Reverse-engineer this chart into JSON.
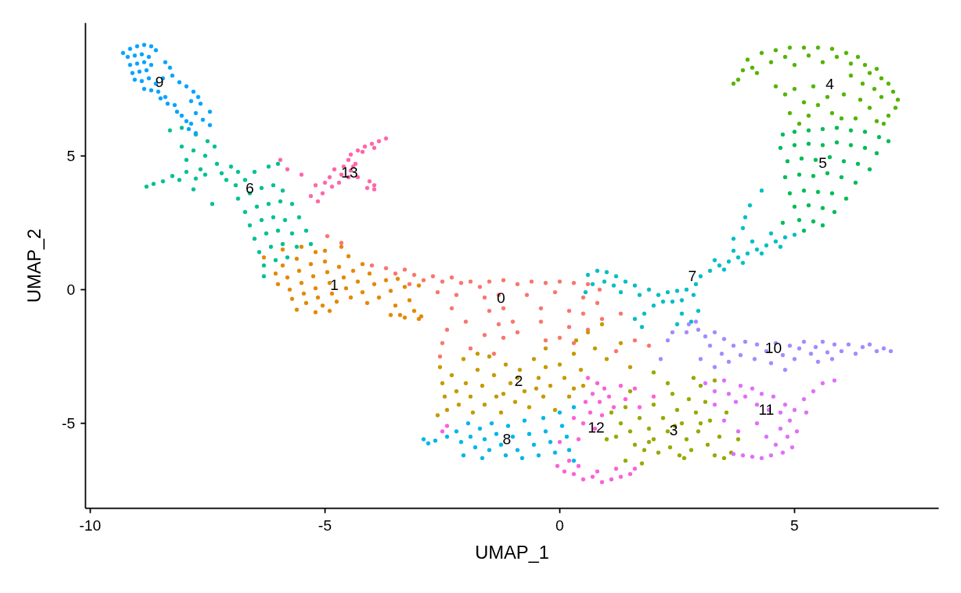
{
  "chart_data": {
    "type": "scatter",
    "xlabel": "UMAP_1",
    "ylabel": "UMAP_2",
    "xlim": [
      -10.1,
      8.07
    ],
    "ylim": [
      -8.18,
      9.97
    ],
    "xticks": [
      -10,
      -5,
      0,
      5
    ],
    "yticks": [
      -5,
      0,
      5
    ],
    "grid": false,
    "marker": "circle",
    "series": [
      {
        "name": "0",
        "color": "#F8766D",
        "x": [
          -4.95,
          -4.65,
          -4.0,
          -3.7,
          -3.5,
          -3.3,
          -3.1,
          -2.9,
          -2.7,
          -2.5,
          -2.3,
          -2.1,
          -1.9,
          -1.7,
          -3.2,
          -2.6,
          -2.2,
          -1.5,
          -1.2,
          -0.9,
          -0.6,
          -0.3,
          0.0,
          0.3,
          0.6,
          0.85,
          -1.6,
          -1.3,
          -0.7,
          -0.1,
          0.5,
          0.8,
          -1.5,
          -1.2,
          -0.4,
          0.2,
          0.5,
          0.9,
          -1.3,
          -1.0,
          -0.4,
          0.2,
          0.6,
          -1.6,
          -1.2,
          -0.9,
          -0.3,
          0.0,
          0.3,
          -2.0,
          -2.3,
          -2.4,
          -2.5,
          -1.9,
          -2.55,
          -1.4,
          1.2,
          1.6,
          1.9,
          1.3
        ],
        "values": [
          2.0,
          1.75,
          0.9,
          0.8,
          0.6,
          0.75,
          0.55,
          0.35,
          0.5,
          0.3,
          0.45,
          0.25,
          0.3,
          0.1,
          0.2,
          -0.1,
          -0.2,
          0.3,
          0.35,
          0.2,
          0.3,
          0.25,
          0.3,
          0.25,
          0.2,
          0.0,
          -0.3,
          -0.2,
          -0.2,
          -0.1,
          -0.3,
          -0.5,
          -0.8,
          -0.7,
          -0.7,
          -0.8,
          -0.9,
          -1.1,
          -1.3,
          -1.2,
          -1.2,
          -1.4,
          -1.5,
          -1.7,
          -1.8,
          -1.6,
          -1.9,
          -1.8,
          -2.0,
          -1.2,
          -0.7,
          -1.5,
          -2.0,
          -2.2,
          -2.5,
          -2.4,
          -2.3,
          -1.9,
          -2.1,
          -0.9
        ]
      },
      {
        "name": "1",
        "color": "#E38900",
        "x": [
          -6.05,
          -6.0,
          -5.9,
          -5.8,
          -5.75,
          -5.7,
          -5.6,
          -5.55,
          -5.5,
          -5.45,
          -5.4,
          -5.3,
          -5.25,
          -5.2,
          -5.15,
          -5.05,
          -5.0,
          -4.95,
          -4.9,
          -4.85,
          -4.75,
          -4.7,
          -4.6,
          -4.55,
          -4.45,
          -4.4,
          -4.3,
          -4.2,
          -4.1,
          -4.05,
          -3.95,
          -3.85,
          -3.7,
          -3.6,
          -3.5,
          -3.45,
          -3.3,
          -3.2,
          -3.1,
          -3.0,
          -2.95,
          -3.4,
          -5.9,
          -5.5,
          -5.2,
          -4.5,
          -6.3,
          -4.2,
          -5.0,
          -4.65,
          -3.6,
          -3.3,
          -3.0,
          -5.6,
          -5.2,
          -4.9
        ],
        "values": [
          0.6,
          0.2,
          0.9,
          0.45,
          0.0,
          -0.35,
          1.15,
          0.7,
          0.25,
          -0.15,
          -0.5,
          0.95,
          0.5,
          0.05,
          -0.3,
          -0.6,
          1.05,
          0.65,
          0.25,
          -0.15,
          -0.45,
          0.85,
          0.45,
          0.05,
          -0.3,
          0.7,
          0.3,
          -0.1,
          -0.5,
          0.6,
          0.2,
          -0.3,
          0.35,
          -0.05,
          -0.6,
          0.4,
          0.1,
          -0.4,
          -0.8,
          0.15,
          -1.0,
          -0.95,
          1.5,
          1.6,
          1.4,
          1.25,
          1.2,
          0.95,
          1.45,
          1.6,
          -0.95,
          -1.05,
          -1.1,
          -0.75,
          -0.85,
          -0.8
        ]
      },
      {
        "name": "2",
        "color": "#C49A00",
        "x": [
          -2.55,
          -2.5,
          -2.45,
          -2.4,
          -2.3,
          -2.2,
          -2.15,
          -2.05,
          -2.0,
          -1.9,
          -1.85,
          -1.75,
          -1.65,
          -1.6,
          -1.5,
          -1.4,
          -1.35,
          -1.25,
          -1.15,
          -1.05,
          -0.95,
          -0.85,
          -0.75,
          -0.65,
          -0.55,
          -0.45,
          -0.35,
          -0.3,
          -0.2,
          -0.1,
          0.0,
          0.1,
          0.2,
          0.3,
          0.45,
          0.5,
          0.35,
          0.6,
          0.75,
          1.0,
          1.3,
          1.5,
          0.9,
          -1.75,
          -2.6,
          -0.9,
          -0.5,
          -1.2,
          -0.3,
          0.3
        ],
        "values": [
          -2.9,
          -3.5,
          -4.0,
          -4.5,
          -3.2,
          -3.8,
          -4.3,
          -2.6,
          -3.5,
          -4.0,
          -4.6,
          -3.0,
          -3.6,
          -4.3,
          -2.5,
          -3.2,
          -4.0,
          -4.6,
          -2.8,
          -3.5,
          -4.2,
          -3.0,
          -3.8,
          -4.4,
          -2.6,
          -3.3,
          -4.0,
          -2.2,
          -3.6,
          -4.5,
          -2.8,
          -3.3,
          -4.0,
          -2.4,
          -3.0,
          -3.6,
          -1.9,
          -1.6,
          -2.2,
          -2.6,
          -2.0,
          -2.9,
          -1.3,
          -2.4,
          -4.7,
          -3.3,
          -3.7,
          -3.9,
          -2.9,
          -3.7
        ]
      },
      {
        "name": "3",
        "color": "#99A800",
        "x": [
          1.1,
          1.3,
          1.2,
          1.4,
          1.5,
          1.6,
          1.7,
          1.8,
          1.9,
          2.0,
          2.0,
          2.1,
          2.2,
          2.3,
          2.35,
          2.4,
          2.5,
          2.55,
          2.6,
          2.7,
          2.75,
          2.8,
          2.9,
          2.95,
          3.0,
          3.1,
          3.15,
          3.2,
          3.3,
          3.4,
          3.5,
          3.55,
          3.65,
          3.3,
          2.85,
          2.3,
          1.5,
          1.0,
          1.4,
          1.75,
          2.0,
          3.8,
          2.45,
          3.0,
          1.9,
          2.65
        ],
        "values": [
          -4.6,
          -5.0,
          -5.5,
          -4.4,
          -5.3,
          -5.8,
          -4.8,
          -6.0,
          -5.2,
          -4.3,
          -5.6,
          -6.1,
          -4.8,
          -5.3,
          -5.9,
          -3.9,
          -4.5,
          -6.2,
          -5.0,
          -5.6,
          -4.1,
          -6.0,
          -4.6,
          -5.3,
          -3.6,
          -4.2,
          -5.8,
          -4.9,
          -6.2,
          -5.5,
          -6.3,
          -4.6,
          -6.1,
          -3.4,
          -3.3,
          -3.5,
          -3.8,
          -5.6,
          -6.4,
          -6.5,
          -3.1,
          -5.6,
          -5.1,
          -5.0,
          -5.7,
          -6.3
        ]
      },
      {
        "name": "4",
        "color": "#53B400",
        "x": [
          4.0,
          4.1,
          4.3,
          4.5,
          4.6,
          4.8,
          4.9,
          5.0,
          5.2,
          5.3,
          5.5,
          5.6,
          5.8,
          5.9,
          6.1,
          6.2,
          6.35,
          6.5,
          6.6,
          6.75,
          6.85,
          7.0,
          7.1,
          7.2,
          7.15,
          7.0,
          6.9,
          6.85,
          6.7,
          6.6,
          6.75,
          6.45,
          6.4,
          6.3,
          6.2,
          6.05,
          6.0,
          4.6,
          4.8,
          5.0,
          5.2,
          5.4,
          5.5,
          5.7,
          5.8,
          5.3,
          5.1,
          4.9,
          3.7,
          3.8,
          3.9,
          4.2
        ],
        "values": [
          8.6,
          8.3,
          8.85,
          8.5,
          8.95,
          8.7,
          9.05,
          8.4,
          9.05,
          8.75,
          9.05,
          8.5,
          9.0,
          8.7,
          8.85,
          8.45,
          8.7,
          8.4,
          8.1,
          8.25,
          7.9,
          7.7,
          7.4,
          7.1,
          6.8,
          6.5,
          6.2,
          7.2,
          7.5,
          6.8,
          6.3,
          7.7,
          7.1,
          6.4,
          8.0,
          7.3,
          6.4,
          7.6,
          7.3,
          7.5,
          7.0,
          7.6,
          6.9,
          7.2,
          6.6,
          6.5,
          6.2,
          6.6,
          7.7,
          7.85,
          8.2,
          8.1
        ]
      },
      {
        "name": "5",
        "color": "#00BC56",
        "x": [
          4.75,
          5.0,
          5.3,
          5.6,
          5.9,
          6.2,
          6.5,
          6.8,
          7.0,
          4.7,
          5.0,
          5.3,
          5.6,
          5.9,
          6.2,
          6.5,
          6.75,
          4.85,
          5.15,
          5.45,
          5.75,
          6.05,
          6.35,
          6.6,
          4.8,
          5.1,
          5.4,
          5.7,
          6.0,
          6.3,
          4.9,
          5.2,
          5.5,
          5.8,
          6.1,
          5.0,
          5.3,
          5.6,
          5.85,
          5.1,
          5.4,
          5.6,
          5.2,
          4.75
        ],
        "values": [
          5.8,
          5.9,
          5.95,
          6.0,
          6.05,
          5.95,
          5.9,
          5.7,
          5.55,
          5.3,
          5.4,
          5.45,
          5.4,
          5.5,
          5.4,
          5.3,
          5.1,
          4.8,
          4.9,
          4.85,
          4.95,
          4.8,
          4.7,
          4.5,
          4.2,
          4.3,
          4.25,
          4.35,
          4.2,
          4.0,
          3.6,
          3.7,
          3.65,
          3.6,
          3.4,
          3.1,
          3.15,
          3.05,
          2.9,
          2.6,
          2.55,
          2.4,
          2.2,
          2.5
        ]
      },
      {
        "name": "6",
        "color": "#00C094",
        "x": [
          -8.3,
          -8.05,
          -7.75,
          -7.5,
          -7.35,
          -8.05,
          -7.8,
          -7.55,
          -7.3,
          -7.95,
          -7.65,
          -7.2,
          -8.8,
          -8.65,
          -8.45,
          -8.25,
          -8.1,
          -7.95,
          -7.75,
          -7.55,
          -6.9,
          -6.7,
          -6.5,
          -6.2,
          -6.0,
          -6.85,
          -6.6,
          -6.35,
          -6.1,
          -5.9,
          -6.7,
          -6.45,
          -6.2,
          -5.95,
          -5.7,
          -6.6,
          -6.35,
          -6.1,
          -5.85,
          -5.55,
          -6.5,
          -6.25,
          -6.0,
          -5.7,
          -5.4,
          -6.4,
          -6.15,
          -5.9,
          -5.6,
          -5.3,
          -6.3,
          -6.05,
          -5.8,
          -6.3,
          -7.4,
          -7.8,
          -7.0,
          -6.85,
          -7.1
        ],
        "values": [
          5.95,
          6.05,
          5.8,
          5.55,
          5.35,
          5.35,
          5.2,
          5.0,
          4.7,
          4.85,
          4.5,
          4.35,
          3.85,
          3.95,
          4.05,
          4.25,
          4.1,
          4.4,
          4.15,
          4.3,
          3.9,
          4.1,
          4.4,
          4.6,
          4.7,
          3.4,
          3.6,
          3.8,
          3.9,
          3.7,
          2.9,
          3.1,
          3.2,
          3.3,
          3.2,
          2.4,
          2.6,
          2.7,
          2.6,
          2.7,
          1.9,
          2.1,
          2.2,
          2.1,
          2.2,
          1.4,
          1.6,
          1.7,
          1.6,
          1.7,
          0.9,
          1.1,
          1.2,
          0.5,
          3.2,
          3.75,
          4.6,
          4.4,
          4.1
        ]
      },
      {
        "name": "7",
        "color": "#00BFC4",
        "x": [
          0.6,
          0.8,
          1.0,
          1.2,
          0.7,
          0.95,
          1.15,
          1.4,
          1.6,
          0.55,
          1.3,
          1.7,
          1.9,
          2.1,
          2.3,
          2.5,
          2.7,
          2.85,
          2.6,
          2.4,
          2.2,
          2.0,
          1.8,
          1.6,
          1.75,
          2.6,
          2.8,
          2.5,
          2.95,
          2.9,
          3.0,
          3.2,
          3.4,
          3.6,
          3.8,
          4.0,
          4.2,
          4.4,
          4.6,
          4.8,
          5.0,
          3.5,
          3.9,
          4.3,
          4.7,
          3.3,
          3.7,
          4.1,
          3.9,
          3.95,
          4.3,
          4.05,
          3.7,
          4.5
        ],
        "values": [
          0.55,
          0.7,
          0.65,
          0.5,
          0.2,
          0.3,
          0.15,
          0.3,
          0.15,
          -0.1,
          -0.1,
          -0.2,
          0.0,
          -0.2,
          -0.1,
          -0.05,
          0.0,
          -0.2,
          -0.4,
          -0.45,
          -0.45,
          -0.6,
          -0.9,
          -1.1,
          -1.4,
          -0.9,
          -1.2,
          -1.3,
          -0.8,
          0.2,
          0.5,
          0.7,
          0.9,
          1.05,
          1.2,
          1.35,
          1.5,
          1.65,
          1.8,
          1.95,
          2.05,
          0.75,
          1.0,
          1.35,
          1.6,
          1.1,
          1.45,
          1.8,
          2.3,
          2.7,
          3.7,
          3.15,
          1.9,
          2.1
        ]
      },
      {
        "name": "8",
        "color": "#00B6EB",
        "x": [
          -2.9,
          -2.8,
          -2.65,
          -2.4,
          -2.2,
          -2.1,
          -1.95,
          -1.9,
          -1.8,
          -1.7,
          -1.6,
          -1.5,
          -1.45,
          -1.35,
          -1.25,
          -1.15,
          -1.1,
          -1.0,
          -0.9,
          -0.8,
          -0.75,
          -0.65,
          -0.55,
          -0.45,
          -0.35,
          -0.3,
          -0.2,
          -0.1,
          0.0,
          0.05,
          0.15,
          0.2,
          0.3,
          0.3,
          -2.05,
          -1.65
        ],
        "values": [
          -5.6,
          -5.75,
          -5.65,
          -5.5,
          -5.3,
          -5.7,
          -5.0,
          -5.5,
          -5.9,
          -5.2,
          -5.6,
          -6.0,
          -5.0,
          -5.4,
          -5.8,
          -6.2,
          -5.1,
          -5.5,
          -6.0,
          -6.3,
          -4.9,
          -5.4,
          -5.8,
          -6.2,
          -4.8,
          -5.3,
          -5.7,
          -6.1,
          -4.6,
          -5.1,
          -5.5,
          -6.0,
          -4.4,
          -6.4,
          -6.2,
          -6.3
        ]
      },
      {
        "name": "9",
        "color": "#06A4FF",
        "x": [
          -9.15,
          -9.0,
          -8.85,
          -8.7,
          -8.6,
          -9.2,
          -9.05,
          -8.9,
          -8.75,
          -9.15,
          -9.0,
          -8.85,
          -8.7,
          -9.1,
          -8.95,
          -8.8,
          -9.05,
          -8.9,
          -8.75,
          -8.6,
          -8.85,
          -8.7,
          -8.55,
          -8.5,
          -8.4,
          -8.35,
          -8.2,
          -8.15,
          -8.05,
          -7.95,
          -7.85,
          -7.9,
          -7.75,
          -8.4,
          -8.3,
          -8.25,
          -8.45,
          -8.1,
          -7.95,
          -7.8,
          -7.7,
          -7.85,
          -7.65,
          -7.45,
          -7.75,
          -7.6,
          -7.45,
          -9.3
        ],
        "values": [
          9.0,
          9.1,
          9.15,
          9.1,
          8.95,
          8.7,
          8.75,
          8.8,
          8.7,
          8.4,
          8.45,
          8.5,
          8.4,
          8.1,
          8.15,
          8.2,
          7.85,
          7.8,
          7.9,
          7.7,
          7.5,
          7.45,
          7.4,
          7.15,
          7.2,
          6.95,
          6.9,
          6.65,
          6.5,
          6.3,
          6.2,
          6.0,
          5.85,
          8.5,
          8.3,
          8.0,
          7.9,
          7.75,
          7.6,
          7.4,
          7.2,
          7.05,
          6.95,
          6.65,
          6.6,
          6.35,
          6.15,
          8.85
        ]
      },
      {
        "name": "10",
        "color": "#A58AFF",
        "x": [
          2.75,
          2.95,
          3.1,
          3.3,
          3.5,
          3.2,
          3.45,
          3.7,
          3.0,
          3.3,
          3.6,
          3.85,
          3.95,
          4.2,
          4.15,
          4.4,
          4.5,
          4.6,
          4.75,
          4.9,
          5.0,
          5.1,
          5.2,
          5.35,
          5.45,
          5.6,
          5.7,
          5.8,
          5.85,
          6.0,
          6.15,
          6.3,
          6.45,
          6.6,
          6.75,
          6.9,
          7.05,
          5.5,
          4.8,
          2.3,
          2.7,
          2.15,
          2.4,
          2.9
        ],
        "values": [
          -1.3,
          -1.5,
          -1.75,
          -1.6,
          -1.85,
          -2.1,
          -2.4,
          -2.1,
          -2.6,
          -2.9,
          -2.7,
          -2.45,
          -1.95,
          -2.05,
          -2.6,
          -2.3,
          -2.75,
          -2.0,
          -2.45,
          -2.1,
          -2.6,
          -2.2,
          -1.95,
          -2.4,
          -2.15,
          -1.95,
          -2.35,
          -2.6,
          -2.05,
          -2.3,
          -2.05,
          -2.4,
          -2.15,
          -2.05,
          -2.3,
          -2.2,
          -2.3,
          -2.7,
          -3.0,
          -1.9,
          -1.6,
          -2.6,
          -1.6,
          -1.2
        ]
      },
      {
        "name": "11",
        "color": "#DF70F8",
        "x": [
          3.1,
          3.3,
          3.5,
          3.6,
          3.75,
          3.85,
          3.95,
          4.1,
          4.2,
          4.3,
          4.45,
          4.55,
          4.7,
          4.8,
          4.9,
          5.0,
          5.05,
          4.85,
          4.95,
          4.7,
          4.6,
          4.75,
          4.5,
          4.3,
          4.1,
          3.9,
          3.7,
          4.4,
          5.2,
          5.4,
          5.6,
          5.85,
          5.25,
          3.5,
          3.8,
          4.2,
          3.3
        ],
        "values": [
          -3.5,
          -3.8,
          -3.4,
          -3.9,
          -4.2,
          -3.6,
          -4.0,
          -3.7,
          -4.3,
          -3.9,
          -4.5,
          -4.0,
          -4.6,
          -4.3,
          -4.9,
          -4.5,
          -5.3,
          -5.5,
          -5.9,
          -5.2,
          -5.8,
          -6.1,
          -6.2,
          -6.3,
          -6.25,
          -6.2,
          -6.15,
          -5.5,
          -4.1,
          -3.8,
          -3.5,
          -3.4,
          -4.6,
          -4.9,
          -5.3,
          -5.0,
          -4.3
        ]
      },
      {
        "name": "12",
        "color": "#FB61D7",
        "x": [
          0.6,
          0.8,
          0.7,
          0.95,
          0.55,
          0.85,
          1.05,
          0.65,
          0.9,
          1.15,
          0.5,
          0.75,
          0.3,
          1.4,
          1.7,
          1.6,
          2.0,
          1.3,
          0.2,
          0.1,
          0.3,
          0.5,
          0.7,
          0.9,
          1.1,
          1.3,
          1.5,
          0.4,
          0.8,
          1.2,
          1.6,
          -0.05,
          0.0,
          0.4,
          -2.4,
          -2.5
        ],
        "values": [
          -3.3,
          -3.5,
          -3.9,
          -3.7,
          -4.2,
          -4.2,
          -4.0,
          -4.6,
          -4.7,
          -4.4,
          -5.0,
          -5.2,
          -4.8,
          -4.1,
          -4.4,
          -3.7,
          -4.0,
          -3.6,
          -6.4,
          -6.8,
          -6.9,
          -7.1,
          -7.0,
          -7.2,
          -7.1,
          -7.0,
          -6.9,
          -6.6,
          -6.8,
          -6.7,
          -6.7,
          -6.6,
          -5.7,
          -5.6,
          -5.1,
          -5.3
        ]
      },
      {
        "name": "13",
        "color": "#FF66A8",
        "x": [
          -3.7,
          -3.85,
          -4.0,
          -4.15,
          -4.3,
          -4.45,
          -3.95,
          -4.2,
          -4.5,
          -4.35,
          -4.6,
          -4.8,
          -4.45,
          -4.65,
          -4.9,
          -4.3,
          -4.05,
          -3.95,
          -4.1,
          -3.95,
          -4.5,
          -5.0,
          -5.2,
          -5.05,
          -5.15,
          -5.3,
          -4.85,
          -5.5,
          -5.8,
          -5.95,
          -4.7,
          -4.4
        ],
        "values": [
          5.65,
          5.55,
          5.45,
          5.35,
          5.2,
          5.05,
          5.3,
          5.15,
          4.85,
          4.7,
          4.6,
          4.5,
          4.45,
          4.3,
          4.2,
          4.2,
          4.05,
          3.9,
          3.8,
          3.75,
          4.2,
          4.0,
          3.9,
          3.6,
          3.3,
          3.5,
          3.85,
          4.3,
          4.5,
          4.85,
          4.0,
          4.6
        ]
      }
    ]
  }
}
